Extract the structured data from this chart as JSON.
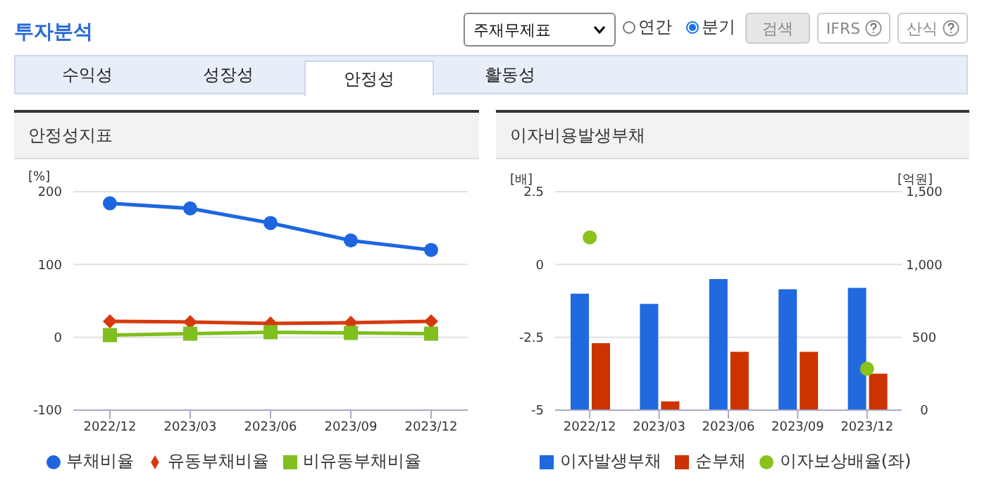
{
  "chart_data": [
    {
      "type": "other",
      "title": "투자분석",
      "annotations": [
        "주재무제표",
        "연간",
        "분기",
        "검색",
        "IFRS",
        "산식",
        "수익성",
        "성장성",
        "안정성",
        "활동성"
      ]
    },
    {
      "type": "line",
      "title": "안정성지표",
      "ylabel": "[%]",
      "categories": [
        "2022/12",
        "2023/03",
        "2023/06",
        "2023/09",
        "2023/12"
      ],
      "series": [
        {
          "name": "부채비율",
          "color": "#1e66e0",
          "marker": "circle",
          "values": [
            184,
            177,
            157,
            133,
            120
          ]
        },
        {
          "name": "유동부채비율",
          "color": "#d53a0f",
          "marker": "diamond",
          "values": [
            22,
            21,
            19,
            20,
            22
          ]
        },
        {
          "name": "비유동부채비율",
          "color": "#7fbf1e",
          "marker": "square",
          "values": [
            3,
            5,
            7,
            6,
            5
          ]
        }
      ],
      "ylim": [
        -100,
        200
      ],
      "yticks": [
        -100,
        0,
        100,
        200
      ],
      "grid": "y",
      "legend": "bottom"
    },
    {
      "type": "bar",
      "title": "이자비용발생부채",
      "ylabel": "[배]",
      "y2label": "[억원]",
      "categories": [
        "2022/12",
        "2023/03",
        "2023/06",
        "2023/09",
        "2023/12"
      ],
      "series": [
        {
          "name": "이자발생부채",
          "color": "#2069df",
          "axis": "y2",
          "values": [
            800,
            730,
            900,
            830,
            840
          ]
        },
        {
          "name": "순부채",
          "color": "#cc3300",
          "axis": "y2",
          "values": [
            460,
            60,
            400,
            400,
            250
          ]
        },
        {
          "name": "이자보상배율(좌)",
          "type": "scatter",
          "color": "#88c21a",
          "marker": "circle",
          "values": [
            0.93,
            null,
            null,
            null,
            -3.58
          ]
        }
      ],
      "ylim": [
        -5,
        2.5
      ],
      "yticks": [
        -5,
        -2.5,
        0,
        2.5
      ],
      "y2lim": [
        0,
        1500
      ],
      "y2ticks": [
        0,
        {
          "value": 500,
          "label": "500"
        },
        {
          "value": 1000,
          "label": "1,000"
        },
        {
          "value": 1500,
          "label": "1,500"
        }
      ],
      "grid": "y",
      "legend": "bottom"
    }
  ]
}
